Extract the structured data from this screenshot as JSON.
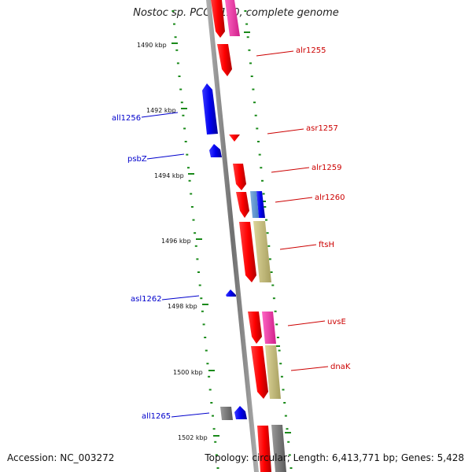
{
  "header": {
    "title": "Nostoc sp. PCC 7120, complete genome"
  },
  "footer": {
    "accession": "Accession: NC_003272",
    "summary": "Topology: circular; Length: 6,413,771 bp; Genes: 5,428"
  },
  "scale": {
    "labels": [
      "1490 kbp",
      "1492 kbp",
      "1494 kbp",
      "1496 kbp",
      "1498 kbp",
      "1500 kbp",
      "1502 kbp"
    ]
  },
  "genes": [
    {
      "name": "alr1255",
      "strand": "forward",
      "color": "#cc0000"
    },
    {
      "name": "all1256",
      "strand": "reverse",
      "color": "#0000cc"
    },
    {
      "name": "asr1257",
      "strand": "forward",
      "color": "#cc0000"
    },
    {
      "name": "psbZ",
      "strand": "reverse",
      "color": "#0000cc"
    },
    {
      "name": "alr1259",
      "strand": "forward",
      "color": "#cc0000"
    },
    {
      "name": "alr1260",
      "strand": "forward",
      "color": "#cc0000"
    },
    {
      "name": "ftsH",
      "strand": "forward",
      "color": "#cc0000"
    },
    {
      "name": "asl1262",
      "strand": "reverse",
      "color": "#0000cc"
    },
    {
      "name": "uvsE",
      "strand": "forward",
      "color": "#cc0000"
    },
    {
      "name": "dnaK",
      "strand": "forward",
      "color": "#cc0000"
    },
    {
      "name": "all1265",
      "strand": "reverse",
      "color": "#0000cc"
    }
  ],
  "colors": {
    "backbone": "#8a8a8a",
    "forward_gene": "#ff0000",
    "reverse_gene": "#0000ee",
    "tick": "#1a8a1a",
    "feature_pink": "#ff33aa",
    "feature_khaki": "#c8c080",
    "feature_gray": "#808080"
  }
}
